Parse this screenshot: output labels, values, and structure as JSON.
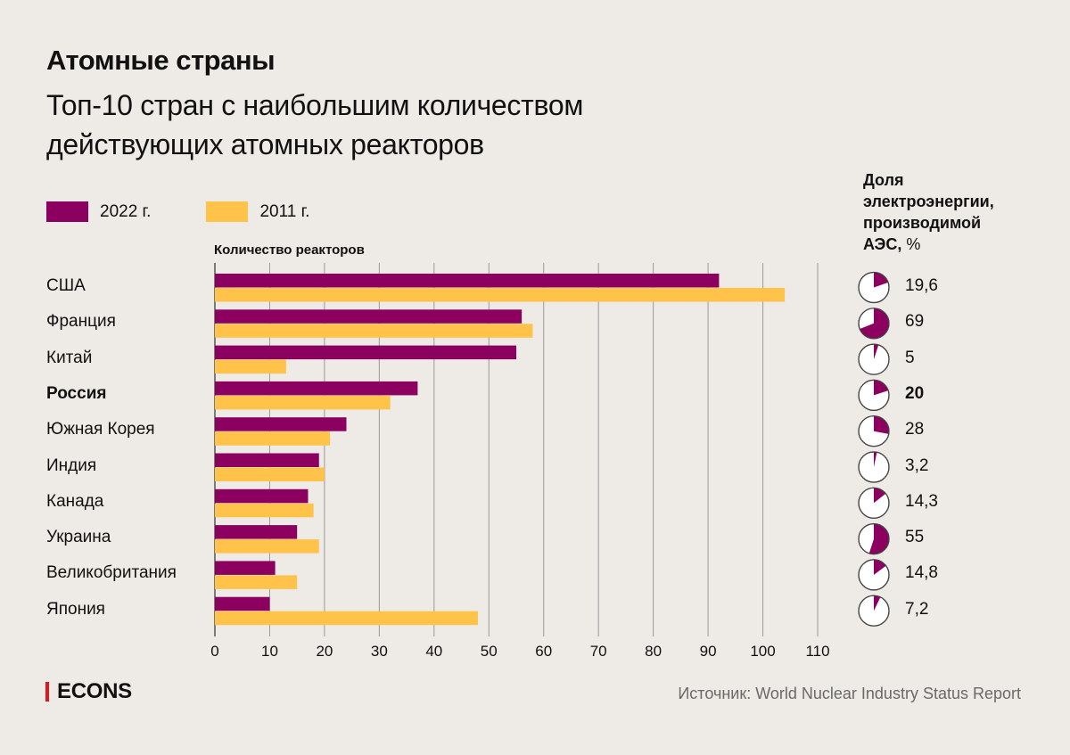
{
  "header": {
    "title": "Атомные страны",
    "subtitle_line1": "Топ-10 стран с наибольшим количеством",
    "subtitle_line2": "действующих атомных реакторов"
  },
  "colors": {
    "series_2022": "#8C0060",
    "series_2011": "#FFC34A",
    "background": "#EEEAE5",
    "gridline": "#9a9a9a",
    "logo_accent": "#E2161C"
  },
  "share_panel": {
    "title_line1": "Доля",
    "title_line2": "электроэнергии,",
    "title_line3": "производимой",
    "title_line4_bold": "АЭС,",
    "title_line4_unit": " %"
  },
  "footer": {
    "logo": "ECONS",
    "source": "Источник: World Nuclear Industry Status Report"
  },
  "chart_data": {
    "type": "bar",
    "orientation": "horizontal",
    "title": "Атомные страны",
    "subtitle": "Топ-10 стран с наибольшим количеством действующих атомных реакторов",
    "xlabel": "Количество реакторов",
    "ylabel": "",
    "xlim": [
      0,
      110
    ],
    "xticks": [
      0,
      10,
      20,
      30,
      40,
      50,
      60,
      70,
      80,
      90,
      100,
      110
    ],
    "xtick_labels": [
      "0",
      "10",
      "20",
      "30",
      "40",
      "50",
      "60",
      "70",
      "80",
      "90",
      "100",
      "110"
    ],
    "grid": true,
    "legend_position": "top-left",
    "categories": [
      "США",
      "Франция",
      "Китай",
      "Россия",
      "Южная Корея",
      "Индия",
      "Канада",
      "Украина",
      "Великобритания",
      "Япония"
    ],
    "highlighted_category": "Россия",
    "series": [
      {
        "name": "2022 г.",
        "values": [
          92,
          56,
          55,
          37,
          24,
          19,
          17,
          15,
          11,
          10
        ]
      },
      {
        "name": "2011 г.",
        "values": [
          104,
          58,
          13,
          32,
          21,
          20,
          18,
          19,
          15,
          48
        ]
      }
    ],
    "nuclear_share": {
      "title": "Доля электроэнергии, производимой АЭС, %",
      "type": "pie",
      "values": [
        19.6,
        69,
        5,
        20,
        28,
        3.2,
        14.3,
        55,
        14.8,
        7.2
      ],
      "labels": [
        "19,6",
        "69",
        "5",
        "20",
        "28",
        "3,2",
        "14,3",
        "55",
        "14,8",
        "7,2"
      ]
    }
  }
}
